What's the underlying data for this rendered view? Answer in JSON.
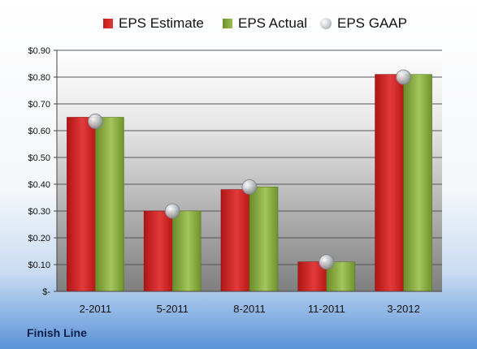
{
  "company": "Finish Line",
  "colors": {
    "estimate": "#c41a1a",
    "actual": "#86a83f",
    "gaap": "#b8bec6",
    "plot_top": "#ffffff",
    "plot_bottom": "#7f7f7f"
  },
  "icons": {
    "gaap_marker": "sphere-icon"
  },
  "chart_data": {
    "type": "bar",
    "title": "",
    "xlabel": "",
    "ylabel": "",
    "categories": [
      "2-2011",
      "5-2011",
      "8-2011",
      "11-2011",
      "3-2012"
    ],
    "series": [
      {
        "name": "EPS Estimate",
        "style": "bar",
        "values": [
          0.65,
          0.3,
          0.38,
          0.11,
          0.81
        ]
      },
      {
        "name": "EPS Actual",
        "style": "bar",
        "values": [
          0.65,
          0.3,
          0.39,
          0.11,
          0.81
        ]
      },
      {
        "name": "EPS GAAP",
        "style": "marker",
        "values": [
          0.635,
          0.3,
          0.39,
          0.11,
          0.8
        ]
      }
    ],
    "ylim": [
      0,
      0.9
    ],
    "yticks": [
      {
        "value": 0.0,
        "label": "$-"
      },
      {
        "value": 0.1,
        "label": "$0.10"
      },
      {
        "value": 0.2,
        "label": "$0.20"
      },
      {
        "value": 0.3,
        "label": "$0.30"
      },
      {
        "value": 0.4,
        "label": "$0.40"
      },
      {
        "value": 0.5,
        "label": "$0.50"
      },
      {
        "value": 0.6,
        "label": "$0.60"
      },
      {
        "value": 0.7,
        "label": "$0.70"
      },
      {
        "value": 0.8,
        "label": "$0.80"
      },
      {
        "value": 0.9,
        "label": "$0.90"
      }
    ],
    "grid": true,
    "legend": "top"
  }
}
